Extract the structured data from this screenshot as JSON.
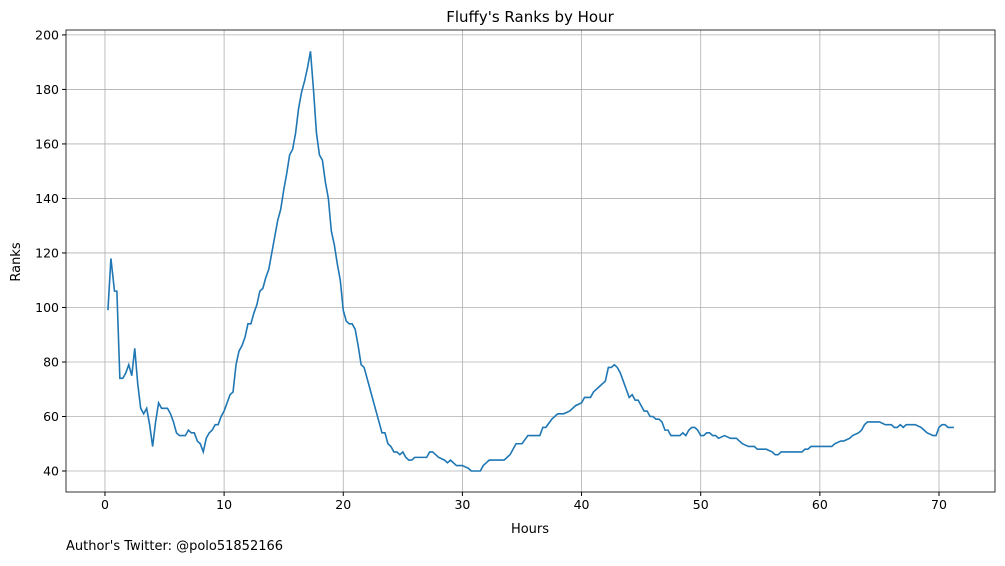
{
  "chart_data": {
    "type": "line",
    "title": "Fluffy's Ranks by Hour",
    "x_label": "Hours",
    "y_label": "Ranks",
    "footnote": "Author's Twitter: @polo51852166",
    "grid": true,
    "xlim": [
      -3.27,
      74.7
    ],
    "ylim": [
      32.3,
      201.8
    ],
    "xticks": [
      0,
      10,
      20,
      30,
      40,
      50,
      60,
      70
    ],
    "yticks": [
      40,
      60,
      80,
      100,
      120,
      140,
      160,
      180,
      200
    ],
    "series": [
      {
        "color": "#1f77b4",
        "x": [
          0.25,
          0.5,
          0.8,
          1.0,
          1.25,
          1.5,
          1.75,
          2.0,
          2.25,
          2.5,
          2.75,
          3.0,
          3.25,
          3.5,
          3.75,
          4.0,
          4.25,
          4.5,
          4.75,
          5.0,
          5.25,
          5.5,
          5.75,
          6.0,
          6.25,
          6.5,
          6.75,
          7.0,
          7.25,
          7.5,
          7.75,
          8.0,
          8.25,
          8.5,
          8.75,
          9.0,
          9.25,
          9.5,
          9.75,
          10,
          10.25,
          10.5,
          10.75,
          11,
          11.25,
          11.5,
          11.75,
          12,
          12.25,
          12.5,
          12.75,
          13,
          13.25,
          13.5,
          13.75,
          14,
          14.25,
          14.5,
          14.75,
          15,
          15.25,
          15.5,
          15.75,
          16,
          16.25,
          16.5,
          16.75,
          17,
          17.25,
          17.5,
          17.75,
          18,
          18.25,
          18.5,
          18.75,
          19,
          19.25,
          19.5,
          19.75,
          20,
          20.25,
          20.5,
          20.75,
          21,
          21.25,
          21.5,
          21.75,
          22,
          22.25,
          22.5,
          22.75,
          23,
          23.25,
          23.5,
          23.75,
          24,
          24.25,
          24.5,
          24.75,
          25,
          25.25,
          25.5,
          25.75,
          26,
          26.5,
          27,
          27.25,
          27.5,
          28,
          28.5,
          28.75,
          29,
          29.5,
          30,
          30.5,
          30.75,
          31.5,
          31.75,
          32,
          32.25,
          33,
          33.5,
          34,
          34.5,
          35,
          35.5,
          36,
          36.5,
          36.75,
          37,
          37.5,
          38,
          38.5,
          39,
          39.5,
          40,
          40.25,
          40.75,
          41,
          41.5,
          42,
          42.25,
          42.5,
          42.75,
          43,
          43.25,
          43.5,
          43.75,
          44,
          44.25,
          44.5,
          44.75,
          45,
          45.25,
          45.5,
          45.75,
          46,
          46.25,
          46.5,
          46.75,
          47,
          47.25,
          47.5,
          48,
          48.25,
          48.5,
          48.75,
          49,
          49.25,
          49.5,
          49.75,
          50,
          50.25,
          50.5,
          50.75,
          51,
          51.25,
          51.5,
          52,
          52.5,
          53,
          53.25,
          53.5,
          54,
          54.5,
          54.75,
          55.5,
          56,
          56.25,
          56.5,
          56.75,
          57.5,
          58.5,
          58.75,
          59,
          59.25,
          60,
          61,
          61.25,
          61.75,
          62,
          62.5,
          62.75,
          63.25,
          63.5,
          63.75,
          64,
          65,
          65.5,
          66,
          66.25,
          66.5,
          66.75,
          67,
          67.25,
          68,
          68.5,
          68.75,
          69,
          69.5,
          69.75,
          70,
          70.25,
          70.5,
          70.75,
          71.25
        ],
        "values": [
          99,
          118,
          106,
          106,
          74,
          74,
          76,
          79,
          75,
          85,
          72,
          63,
          61,
          63,
          57,
          49,
          58,
          65,
          63,
          63,
          63,
          61,
          58,
          54,
          53,
          53,
          53,
          55,
          54,
          54,
          51,
          50,
          47,
          52,
          54,
          55,
          57,
          57,
          60,
          62,
          65,
          68,
          69,
          79,
          84,
          86,
          89,
          94,
          94,
          98,
          101,
          106,
          107,
          111,
          114,
          120,
          126,
          132,
          136,
          143,
          149,
          156,
          158,
          164,
          173,
          179,
          183,
          188,
          194,
          180,
          164,
          156,
          154,
          146,
          140,
          128,
          123,
          116,
          110,
          99,
          95,
          94,
          94,
          92,
          86,
          79,
          78,
          74,
          70,
          66,
          62,
          58,
          54,
          54,
          50,
          49,
          47,
          47,
          46,
          47,
          45,
          44,
          44,
          45,
          45,
          45,
          47,
          47,
          45,
          44,
          43,
          44,
          42,
          42,
          41,
          40,
          40,
          42,
          43,
          44,
          44,
          44,
          46,
          50,
          50,
          53,
          53,
          53,
          56,
          56,
          59,
          61,
          61,
          62,
          64,
          65,
          67,
          67,
          69,
          71,
          73,
          78,
          78,
          79,
          78,
          76,
          73,
          70,
          67,
          68,
          66,
          66,
          64,
          62,
          62,
          60,
          60,
          59,
          59,
          58,
          55,
          55,
          53,
          53,
          53,
          54,
          53,
          55,
          56,
          56,
          55,
          53,
          53,
          54,
          54,
          53,
          53,
          52,
          53,
          52,
          52,
          51,
          50,
          49,
          49,
          48,
          48,
          47,
          46,
          46,
          47,
          47,
          47,
          48,
          48,
          49,
          49,
          49,
          50,
          51,
          51,
          52,
          53,
          54,
          55,
          57,
          58,
          58,
          57,
          57,
          56,
          56,
          57,
          56,
          57,
          57,
          56,
          55,
          54,
          53,
          53,
          56,
          57,
          57,
          56,
          56
        ]
      }
    ]
  }
}
